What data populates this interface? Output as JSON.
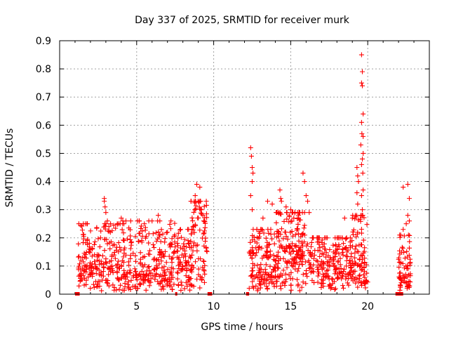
{
  "chart_data": {
    "type": "scatter",
    "title": "Day 337 of 2025, SRMTID for receiver murk",
    "xlabel": "GPS time / hours",
    "ylabel": "SRMTID / TECUs",
    "xlim": [
      0,
      24
    ],
    "ylim": [
      0,
      0.9
    ],
    "xticks": [
      "0",
      "5",
      "10",
      "15",
      "20"
    ],
    "yticks": [
      "0",
      "0.1",
      "0.2",
      "0.3",
      "0.4",
      "0.5",
      "0.6",
      "0.7",
      "0.8",
      "0.9"
    ],
    "grid": true,
    "marker": "+",
    "colors": {
      "points": "#ff0000",
      "gaps": "#ff0000",
      "grid": "#a0a0a0",
      "axes": "#000000"
    },
    "data_gaps_hours": [
      [
        1.0,
        1.3
      ],
      [
        7.5,
        7.6
      ],
      [
        9.6,
        9.9
      ],
      [
        12.1,
        12.3
      ],
      [
        21.8,
        22.3
      ]
    ],
    "series": [
      {
        "name": "SRMTID",
        "segments": [
          {
            "x_start": 1.2,
            "x_end": 4.2,
            "y_base": 0.05,
            "y_spread": 0.17,
            "n": 230
          },
          {
            "x_start": 4.2,
            "x_end": 7.5,
            "y_base": 0.03,
            "y_spread": 0.2,
            "n": 240
          },
          {
            "x_start": 7.6,
            "x_end": 8.6,
            "y_base": 0.05,
            "y_spread": 0.15,
            "n": 80
          },
          {
            "x_start": 8.5,
            "x_end": 9.6,
            "y_base": 0.15,
            "y_spread": 0.15,
            "n": 90
          },
          {
            "x_start": 12.3,
            "x_end": 14.0,
            "y_base": 0.03,
            "y_spread": 0.17,
            "n": 140
          },
          {
            "x_start": 14.0,
            "x_end": 16.0,
            "y_base": 0.08,
            "y_spread": 0.18,
            "n": 190
          },
          {
            "x_start": 16.0,
            "x_end": 19.0,
            "y_base": 0.05,
            "y_spread": 0.12,
            "n": 220
          },
          {
            "x_start": 19.0,
            "x_end": 20.0,
            "y_base": 0.05,
            "y_spread": 0.2,
            "n": 90
          },
          {
            "x_start": 22.0,
            "x_end": 22.8,
            "y_base": 0.02,
            "y_spread": 0.16,
            "n": 70
          }
        ],
        "points": [
          [
            2.9,
            0.34
          ],
          [
            2.9,
            0.33
          ],
          [
            2.95,
            0.31
          ],
          [
            3.0,
            0.29
          ],
          [
            3.1,
            0.26
          ],
          [
            3.2,
            0.24
          ],
          [
            3.3,
            0.22
          ],
          [
            4.0,
            0.27
          ],
          [
            4.1,
            0.26
          ],
          [
            5.5,
            0.25
          ],
          [
            6.0,
            0.26
          ],
          [
            6.4,
            0.28
          ],
          [
            7.0,
            0.22
          ],
          [
            8.8,
            0.35
          ],
          [
            8.9,
            0.39
          ],
          [
            9.1,
            0.38
          ],
          [
            9.2,
            0.3
          ],
          [
            9.3,
            0.28
          ],
          [
            9.35,
            0.26
          ],
          [
            12.4,
            0.52
          ],
          [
            12.45,
            0.49
          ],
          [
            12.5,
            0.45
          ],
          [
            12.55,
            0.43
          ],
          [
            12.5,
            0.4
          ],
          [
            12.4,
            0.35
          ],
          [
            12.5,
            0.3
          ],
          [
            13.2,
            0.27
          ],
          [
            13.5,
            0.33
          ],
          [
            13.8,
            0.32
          ],
          [
            14.3,
            0.37
          ],
          [
            14.35,
            0.34
          ],
          [
            14.4,
            0.33
          ],
          [
            14.7,
            0.31
          ],
          [
            15.0,
            0.3
          ],
          [
            15.2,
            0.27
          ],
          [
            15.8,
            0.43
          ],
          [
            15.9,
            0.4
          ],
          [
            16.0,
            0.35
          ],
          [
            16.1,
            0.33
          ],
          [
            16.2,
            0.29
          ],
          [
            18.5,
            0.27
          ],
          [
            19.0,
            0.27
          ],
          [
            19.3,
            0.45
          ],
          [
            19.35,
            0.42
          ],
          [
            19.4,
            0.4
          ],
          [
            19.3,
            0.36
          ],
          [
            19.35,
            0.32
          ],
          [
            19.6,
            0.85
          ],
          [
            19.65,
            0.79
          ],
          [
            19.6,
            0.75
          ],
          [
            19.65,
            0.74
          ],
          [
            19.7,
            0.64
          ],
          [
            19.6,
            0.61
          ],
          [
            19.62,
            0.57
          ],
          [
            19.7,
            0.56
          ],
          [
            19.55,
            0.53
          ],
          [
            19.7,
            0.5
          ],
          [
            19.65,
            0.48
          ],
          [
            19.6,
            0.46
          ],
          [
            19.68,
            0.43
          ],
          [
            19.7,
            0.37
          ],
          [
            19.6,
            0.35
          ],
          [
            19.65,
            0.3
          ],
          [
            22.3,
            0.38
          ],
          [
            22.6,
            0.39
          ],
          [
            22.7,
            0.34
          ],
          [
            22.6,
            0.28
          ],
          [
            22.5,
            0.25
          ],
          [
            22.3,
            0.23
          ],
          [
            22.7,
            0.26
          ]
        ]
      }
    ]
  }
}
